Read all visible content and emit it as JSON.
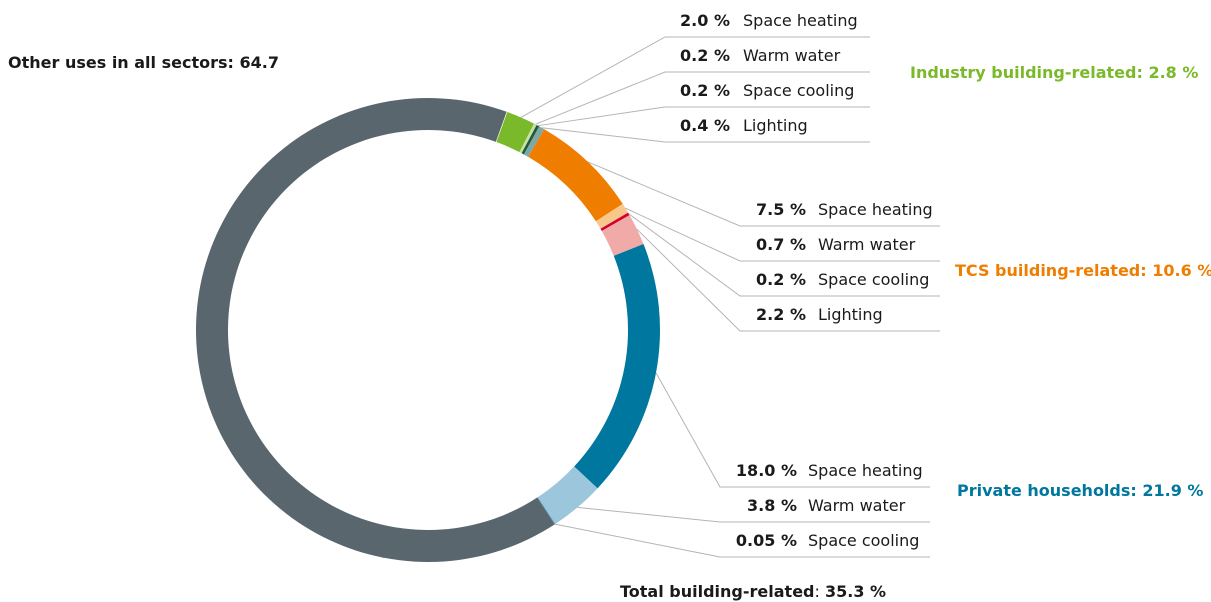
{
  "chart_data": {
    "type": "donut",
    "other": {
      "name": "Other uses in all sectors",
      "value": 64.7,
      "color": "#5a666d"
    },
    "groups": [
      {
        "name": "Industry building-related",
        "value": 2.8,
        "value_label": "2.8 %",
        "color": "#7ab929",
        "categories": [
          "Space heating",
          "Warm water",
          "Space cooling",
          "Lighting"
        ],
        "values": [
          2.0,
          0.2,
          0.2,
          0.4
        ],
        "value_labels": [
          "2.0 %",
          "0.2 %",
          "0.2 %",
          "0.4 %"
        ],
        "colors": [
          "#7ab929",
          "#c9e0a0",
          "#1e5a3c",
          "#7ea8a4"
        ]
      },
      {
        "name": "TCS building-related",
        "value": 10.6,
        "value_label": "10.6 %",
        "color": "#ef7d00",
        "categories": [
          "Space heating",
          "Warm water",
          "Space cooling",
          "Lighting"
        ],
        "values": [
          7.5,
          0.7,
          0.2,
          2.2
        ],
        "value_labels": [
          "7.5 %",
          "0.7 %",
          "0.2 %",
          "2.2 %"
        ],
        "colors": [
          "#ef7d00",
          "#f9c78c",
          "#d4002d",
          "#f0aaa8"
        ]
      },
      {
        "name": "Private households",
        "value": 21.9,
        "value_label": "21.9 %",
        "color": "#00779e",
        "categories": [
          "Space heating",
          "Warm water",
          "Space cooling"
        ],
        "values": [
          18.0,
          3.8,
          0.05
        ],
        "value_labels": [
          "18.0 %",
          "3.8 %",
          "0.05 %"
        ],
        "colors": [
          "#00779e",
          "#9cc6dc",
          "#4f8fb0"
        ]
      }
    ],
    "total": {
      "name": "Total building-related",
      "value": 35.3,
      "value_label": "35.3 %"
    }
  }
}
